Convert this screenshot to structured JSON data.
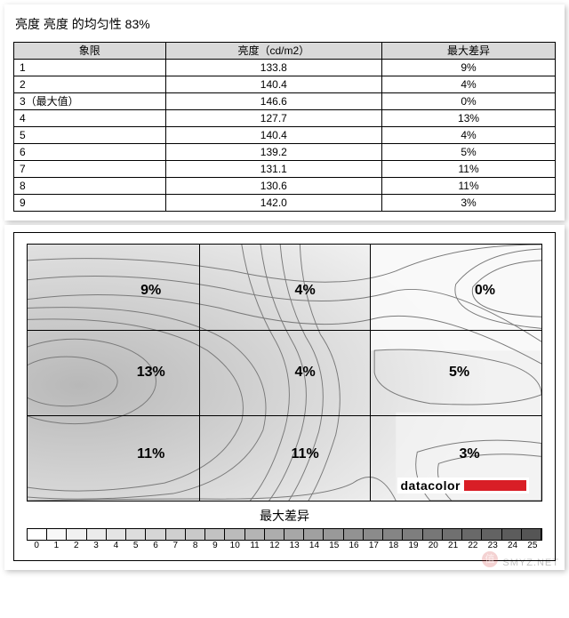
{
  "title": "亮度 亮度 的均匀性 83%",
  "table": {
    "headers": {
      "quadrant": "象限",
      "brightness": "亮度（cd/m2）",
      "maxdiff": "最大差异"
    },
    "rows": [
      {
        "q": "1",
        "b": "133.8",
        "d": "9%"
      },
      {
        "q": "2",
        "b": "140.4",
        "d": "4%"
      },
      {
        "q": "3（最大值）",
        "b": "146.6",
        "d": "0%"
      },
      {
        "q": "4",
        "b": "127.7",
        "d": "13%"
      },
      {
        "q": "5",
        "b": "140.4",
        "d": "4%"
      },
      {
        "q": "6",
        "b": "139.2",
        "d": "5%"
      },
      {
        "q": "7",
        "b": "131.1",
        "d": "11%"
      },
      {
        "q": "8",
        "b": "130.6",
        "d": "11%"
      },
      {
        "q": "9",
        "b": "142.0",
        "d": "3%"
      }
    ]
  },
  "contour": {
    "type": "contour-heatmap",
    "grid_rows": 3,
    "grid_cols": 3,
    "cell_labels": [
      [
        "9%",
        "4%",
        "0%"
      ],
      [
        "13%",
        "4%",
        "5%"
      ],
      [
        "11%",
        "11%",
        "3%"
      ]
    ],
    "label_fontsize": 16,
    "label_fontweight": "bold",
    "label_color": "#000000",
    "contour_line_color": "#7a7a7a",
    "grid_line_color": "#000000",
    "background_light": "#f5f5f5",
    "background_dark": "#bcbcbc",
    "axis_title": "最大差异",
    "brand_text": "datacolor",
    "brand_bar_color": "#d91e26",
    "scale": {
      "min": 0,
      "max": 25,
      "step": 1,
      "gradient_stops": [
        {
          "pct": 0,
          "color": "#ffffff"
        },
        {
          "pct": 100,
          "color": "#555555"
        }
      ],
      "border_color": "#000000",
      "tick_fontsize": 10
    }
  },
  "watermark": {
    "text": "SMYZ.NET",
    "badge": "值"
  }
}
